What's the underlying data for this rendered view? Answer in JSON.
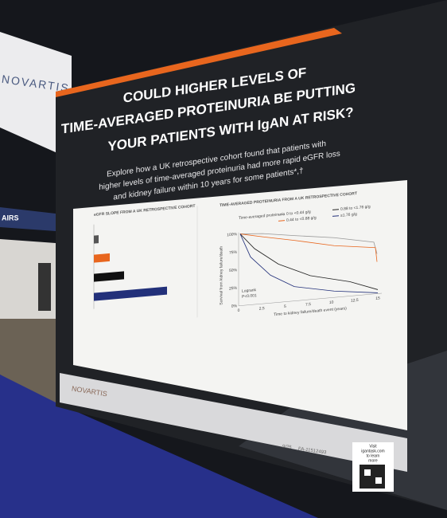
{
  "wall": {
    "brand": "NOVARTIS",
    "sign": "AIRS"
  },
  "poster": {
    "headline": [
      "COULD HIGHER LEVELS OF",
      "TIME-AVERAGED PROTEINURIA BE PUTTING",
      "YOUR PATIENTS WITH IgAN AT RISK?"
    ],
    "intro": [
      "Explore how a UK retrospective cohort found that patients with",
      "higher levels of time-averaged proteinuria had more rapid eGFR loss",
      "and kidney failure within 10 years for some patients*,†"
    ],
    "left_title": "eGFR SLOPE FROM A UK RETROSPECTIVE COHORT",
    "right_title": "TIME-AVERAGED PROTEINURIA FROM A UK RETROSPECTIVE COHORT",
    "legend_title": "Time-averaged proteinuria",
    "legend": [
      "0 to <0.44 g/g",
      "0.44 to <0.88 g/g",
      "0.88 to <1.76 g/g",
      "≥1.76 g/g"
    ],
    "y_axis": "Survival from kidney failure/death",
    "x_axis": "Time to kidney failure/death event (years)",
    "y_ticks": [
      "100%",
      "75%",
      "50%",
      "25%",
      "0%"
    ],
    "x_ticks": [
      "0",
      "2.5",
      "5",
      "7.5",
      "10",
      "12.5",
      "15"
    ],
    "stat": [
      "Logrank",
      "P<0.001"
    ],
    "footer_brand": "NOVARTIS",
    "date": "9/25",
    "code": "FA-11512493",
    "qr_text": [
      "Visit",
      "igantask.com",
      "to learn",
      "more"
    ]
  }
}
